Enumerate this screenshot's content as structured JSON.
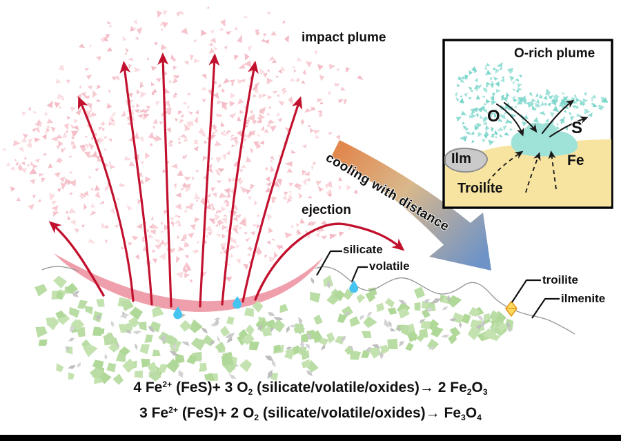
{
  "labels": {
    "impact_plume": "impact plume",
    "cooling": "cooling with distance",
    "ejection": "ejection",
    "silicate": "silicate",
    "volatile": "volatile",
    "troilite": "troilite",
    "ilmenite": "ilmenite"
  },
  "inset": {
    "title": "O-rich plume",
    "oxygen": "O",
    "sulfur": "S",
    "ilmenite_abbr": "Ilm",
    "iron": "Fe",
    "troilite": "Troilite"
  },
  "equations": [
    {
      "segments": [
        {
          "t": "4 Fe"
        },
        {
          "t": "2+",
          "style": "sup"
        },
        {
          "t": " (FeS)+ 3 O"
        },
        {
          "t": "2",
          "style": "sub"
        },
        {
          "t": " (silicate/volatile/oxides)→ 2 Fe"
        },
        {
          "t": "2",
          "style": "sub"
        },
        {
          "t": "O"
        },
        {
          "t": "3",
          "style": "sub"
        }
      ]
    },
    {
      "segments": [
        {
          "t": "3 Fe"
        },
        {
          "t": "2+",
          "style": "sup"
        },
        {
          "t": " (FeS)+ 2 O"
        },
        {
          "t": "2",
          "style": "sub"
        },
        {
          "t": " (silicate/volatile/oxides)→ Fe"
        },
        {
          "t": "3",
          "style": "sub"
        },
        {
          "t": "O"
        },
        {
          "t": "4",
          "style": "sub"
        }
      ]
    }
  ],
  "colors": {
    "red": "#c2112e",
    "curtain": "#ef9fab",
    "plume_pink": [
      "#f8ccd3",
      "#f4bcc6",
      "#f6c5cd",
      "#fbdce0"
    ],
    "green": [
      "#b9dda4",
      "#b0d899",
      "#c3e2b0"
    ],
    "gray": [
      "#c9c9c9",
      "#d4d4d4",
      "#bebebe"
    ],
    "droplet": "#45c3f1",
    "teal": [
      "#8fdcd3",
      "#a5e4dc",
      "#7fd6cc"
    ],
    "inset_yellow": "#f8e4a1",
    "melt_pocket": "#9fe2d8",
    "ilm_fill": "#cacaca",
    "ilm_stroke": "#8e8e8e",
    "gold_fill": "#ffd95e",
    "gold_stroke": "#e29a1c",
    "surface_gray": "#9a9a9a",
    "ink": "#1a1a1a",
    "cool_start": "#e1884e",
    "cool_mid": "#d9b88c",
    "cool_end": "#6e93c7"
  }
}
